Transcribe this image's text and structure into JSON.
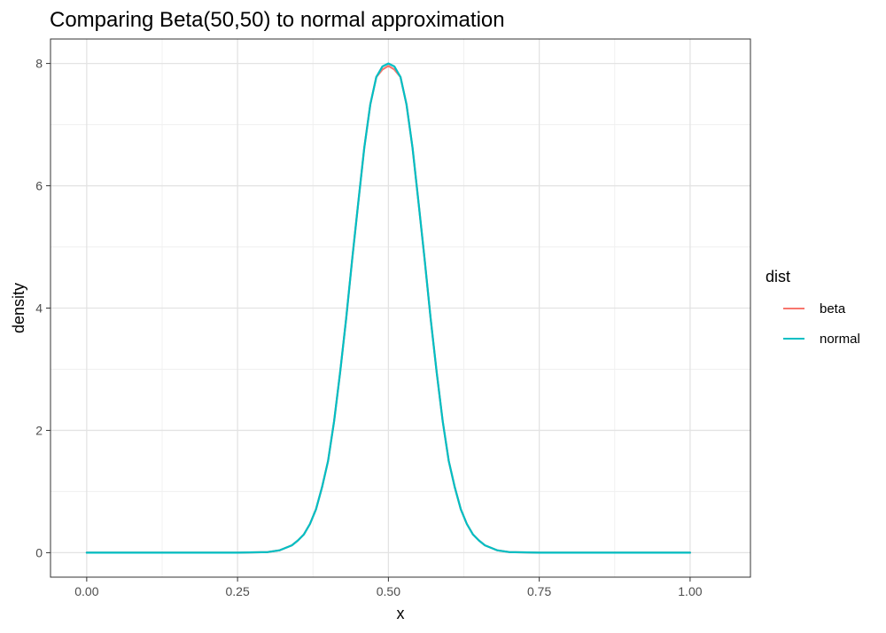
{
  "chart_data": {
    "type": "line",
    "title": "Comparing Beta(50,50) to normal approximation",
    "xlabel": "x",
    "ylabel": "density",
    "xlim": [
      -0.06,
      1.1
    ],
    "ylim": [
      -0.4,
      8.4
    ],
    "x_ticks": [
      0,
      0.25,
      0.5,
      0.75,
      1
    ],
    "x_tick_labels": [
      "0.00",
      "0.25",
      "0.50",
      "0.75",
      "1.00"
    ],
    "y_ticks": [
      0,
      2,
      4,
      6,
      8
    ],
    "y_tick_labels": [
      "0",
      "2",
      "4",
      "6",
      "8"
    ],
    "grid": true,
    "legend": {
      "title": "dist",
      "position": "right"
    },
    "series": [
      {
        "name": "beta",
        "color": "#F8766D",
        "x": [
          0,
          0.05,
          0.1,
          0.15,
          0.2,
          0.25,
          0.3,
          0.32,
          0.34,
          0.35,
          0.36,
          0.37,
          0.38,
          0.39,
          0.4,
          0.41,
          0.42,
          0.43,
          0.44,
          0.45,
          0.46,
          0.47,
          0.48,
          0.49,
          0.5,
          0.51,
          0.52,
          0.53,
          0.54,
          0.55,
          0.56,
          0.57,
          0.58,
          0.59,
          0.6,
          0.61,
          0.62,
          0.63,
          0.64,
          0.65,
          0.66,
          0.68,
          0.7,
          0.75,
          0.8,
          0.85,
          0.9,
          0.95,
          1
        ],
        "y": [
          0,
          0,
          0,
          0,
          0,
          0,
          0.01,
          0.04,
          0.12,
          0.2,
          0.3,
          0.47,
          0.71,
          1.07,
          1.5,
          2.15,
          2.95,
          3.83,
          4.8,
          5.72,
          6.62,
          7.33,
          7.78,
          7.9,
          7.96,
          7.9,
          7.78,
          7.33,
          6.62,
          5.72,
          4.8,
          3.83,
          2.95,
          2.15,
          1.5,
          1.07,
          0.71,
          0.47,
          0.3,
          0.2,
          0.12,
          0.04,
          0.01,
          0,
          0,
          0,
          0,
          0,
          0
        ]
      },
      {
        "name": "normal",
        "color": "#00BFC4",
        "x": [
          0,
          0.05,
          0.1,
          0.15,
          0.2,
          0.25,
          0.3,
          0.32,
          0.34,
          0.35,
          0.36,
          0.37,
          0.38,
          0.39,
          0.4,
          0.41,
          0.42,
          0.43,
          0.44,
          0.45,
          0.46,
          0.47,
          0.48,
          0.49,
          0.5,
          0.51,
          0.52,
          0.53,
          0.54,
          0.55,
          0.56,
          0.57,
          0.58,
          0.59,
          0.6,
          0.61,
          0.62,
          0.63,
          0.64,
          0.65,
          0.66,
          0.68,
          0.7,
          0.75,
          0.8,
          0.85,
          0.9,
          0.95,
          1
        ],
        "y": [
          0,
          0,
          0,
          0,
          0,
          0,
          0.01,
          0.04,
          0.12,
          0.2,
          0.3,
          0.47,
          0.71,
          1.07,
          1.5,
          2.15,
          2.95,
          3.83,
          4.8,
          5.72,
          6.62,
          7.33,
          7.78,
          7.95,
          8.0,
          7.95,
          7.78,
          7.33,
          6.62,
          5.72,
          4.8,
          3.83,
          2.95,
          2.15,
          1.5,
          1.07,
          0.71,
          0.47,
          0.3,
          0.2,
          0.12,
          0.04,
          0.01,
          0,
          0,
          0,
          0,
          0,
          0
        ]
      }
    ]
  }
}
